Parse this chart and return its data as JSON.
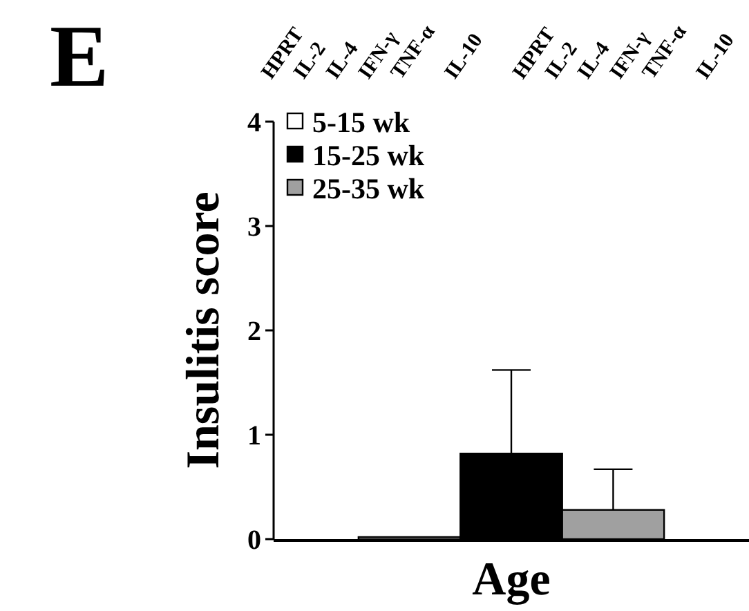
{
  "chart_data": {
    "type": "bar",
    "ylabel": "Insulitis score",
    "xlabel": "Age",
    "categories": [
      null
    ],
    "series": [
      {
        "name": "5-15 wk",
        "color": "#ffffff",
        "values": [
          0.02
        ]
      },
      {
        "name": "15-25 wk",
        "color": "#000000",
        "values": [
          0.82
        ],
        "errors": [
          [
            0.82,
            1.62
          ]
        ]
      },
      {
        "name": "25-35 wk",
        "color": "#a0a0a0",
        "values": [
          0.28
        ],
        "errors": [
          [
            0.28,
            0.67
          ]
        ]
      }
    ],
    "ylim": [
      0,
      4
    ],
    "yticks": [
      0,
      1,
      2,
      3,
      4
    ],
    "grid": false,
    "legend": "top left",
    "annotations": [
      "E",
      "HPRT",
      "IL-2",
      "IL-4",
      "IFN-γ",
      "TNF-α",
      "IL-10",
      "HPRT",
      "IL-2",
      "IL-4",
      "IFN-γ",
      "TNF-α",
      "IL-10"
    ]
  }
}
